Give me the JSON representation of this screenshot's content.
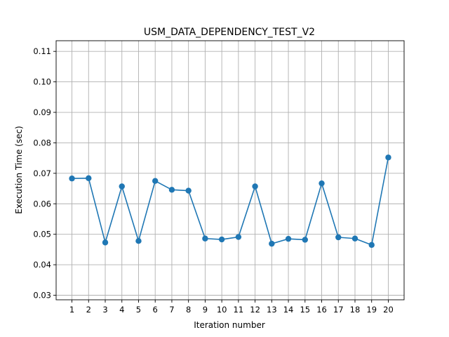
{
  "chart_data": {
    "type": "line",
    "title": "USM_DATA_DEPENDENCY_TEST_V2",
    "xlabel": "Iteration number",
    "ylabel": "Execution Time (sec)",
    "x": [
      1,
      2,
      3,
      4,
      5,
      6,
      7,
      8,
      9,
      10,
      11,
      12,
      13,
      14,
      15,
      16,
      17,
      18,
      19,
      20
    ],
    "x_tick_labels": [
      "1",
      "2",
      "3",
      "4",
      "5",
      "6",
      "7",
      "8",
      "9",
      "10",
      "11",
      "12",
      "13",
      "14",
      "15",
      "16",
      "17",
      "18",
      "19",
      "20"
    ],
    "series": [
      {
        "values": [
          0.0683,
          0.0684,
          0.0473,
          0.0657,
          0.0478,
          0.0675,
          0.0646,
          0.0643,
          0.0486,
          0.0483,
          0.0491,
          0.0657,
          0.0469,
          0.0485,
          0.0482,
          0.0667,
          0.049,
          0.0486,
          0.0465,
          0.0752
        ],
        "color": "#1f77b4",
        "marker": "circle"
      }
    ],
    "xlim": [
      0.05,
      20.95
    ],
    "ylim": [
      0.0285,
      0.1135
    ],
    "y_ticks": [
      0.03,
      0.04,
      0.05,
      0.06,
      0.07,
      0.08,
      0.09,
      0.1,
      0.11
    ],
    "y_tick_labels": [
      "0.03",
      "0.04",
      "0.05",
      "0.06",
      "0.07",
      "0.08",
      "0.09",
      "0.10",
      "0.11"
    ],
    "grid": true
  }
}
